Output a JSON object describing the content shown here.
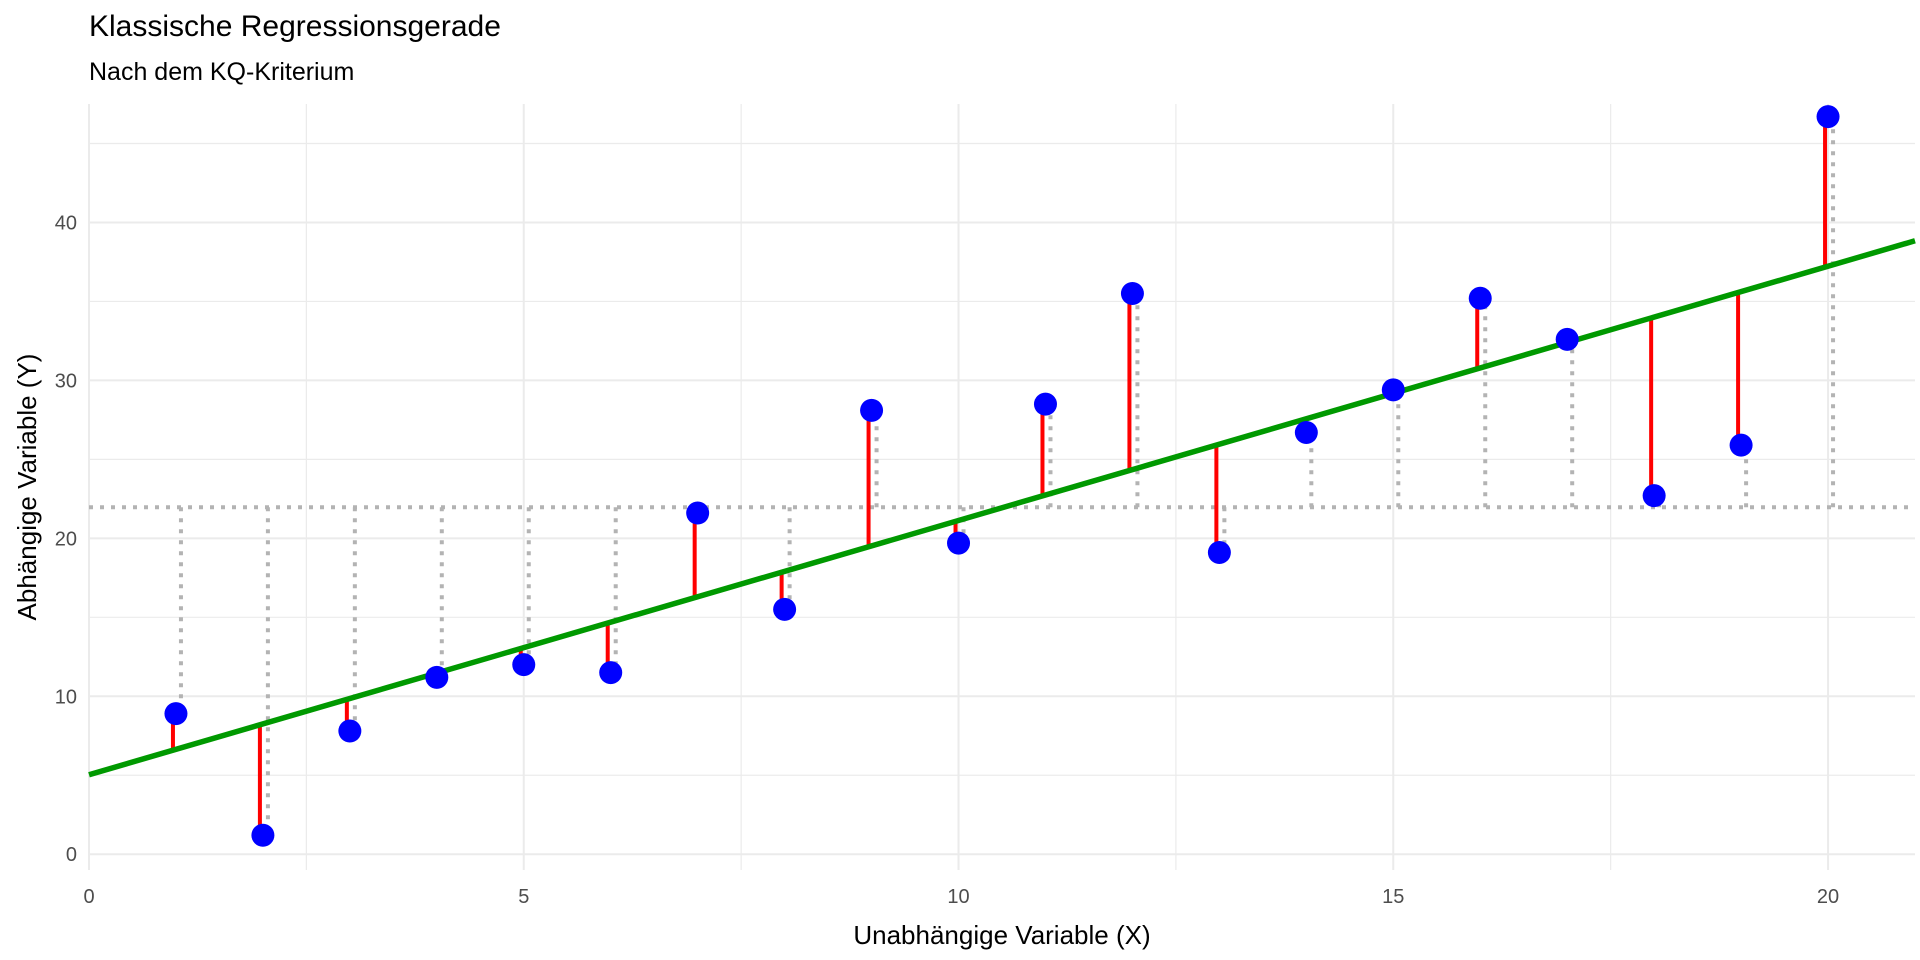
{
  "chart_data": {
    "type": "scatter",
    "title": "Klassische Regressionsgerade",
    "subtitle": "Nach dem KQ-Kriterium",
    "xlabel": "Unabhängige Variable (X)",
    "ylabel": "Abhängige Variable (Y)",
    "xlim": [
      0,
      21
    ],
    "ylim": [
      -1,
      47.5
    ],
    "x_ticks": [
      0,
      5,
      10,
      15,
      20
    ],
    "y_ticks": [
      0,
      10,
      20,
      30,
      40
    ],
    "grid": true,
    "series": [
      {
        "type": "scatter",
        "x": [
          1,
          2,
          3,
          4,
          5,
          6,
          7,
          8,
          9,
          10,
          11,
          12,
          13,
          14,
          15,
          16,
          17,
          18,
          19,
          20
        ],
        "y": [
          8.9,
          1.2,
          7.8,
          11.2,
          12.0,
          11.5,
          21.6,
          15.5,
          28.1,
          19.7,
          28.5,
          35.5,
          19.1,
          26.7,
          29.4,
          35.2,
          32.6,
          22.7,
          25.9,
          46.7
        ]
      },
      {
        "type": "line",
        "intercept": 5.03,
        "slope": 1.61
      },
      {
        "type": "hline",
        "y": 21.97
      }
    ],
    "colors": {
      "points": "#0000ff",
      "regression_line": "#009900",
      "residuals": "#ff0000",
      "mean_guides": "#b3b3b3",
      "grid": "#ebebeb"
    }
  }
}
